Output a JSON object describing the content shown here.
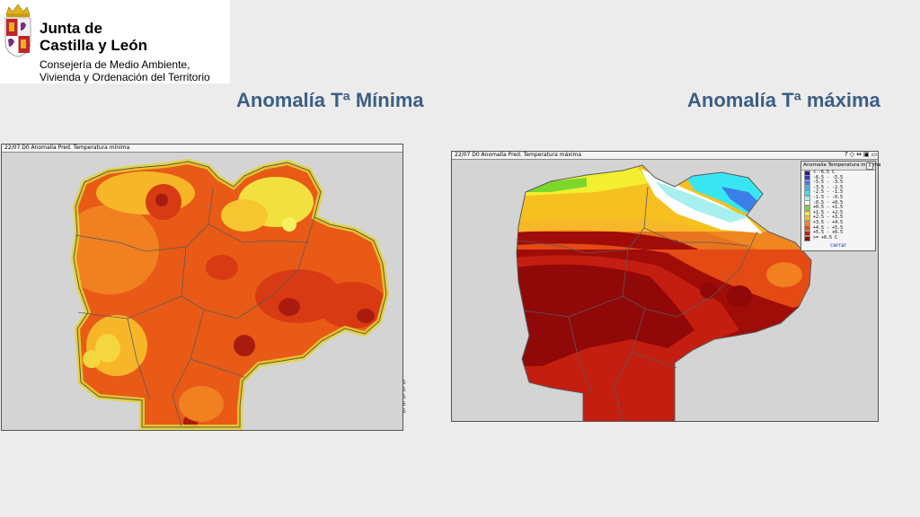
{
  "logo": {
    "org_line1": "Junta de",
    "org_line2": "Castilla y León",
    "dept_line1": "Consejería de Medio Ambiente,",
    "dept_line2": "Vivienda y Ordenación del Territorio"
  },
  "titles": {
    "min": "Anomalía Tª Mínima",
    "max": "Anomalía Tª máxima"
  },
  "panels": {
    "min_header": "22/07 D0 Anomalía Pred. Temperatura mínima",
    "max_header": "22/07 D0 Anomalía Pred. Temperatura máxima"
  },
  "toolbar": [
    "?",
    "◇",
    "⇔",
    "▣",
    "▭"
  ],
  "side_scale": [
    "5",
    "5",
    "5",
    "5",
    "5"
  ],
  "legend": {
    "title": "Anomalía Temperatura máxima",
    "close_label": "X",
    "cerrar_label": "cerrar",
    "rows": [
      {
        "label": "< -6.5 C",
        "color": "#2a1c8c"
      },
      {
        "label": "-6.5 - -5.5",
        "color": "#3636d8"
      },
      {
        "label": "-5.5 - -3.5",
        "color": "#3a7ee8"
      },
      {
        "label": "-3.5 - -2.5",
        "color": "#2cb6f0"
      },
      {
        "label": "-2.5 - -1.5",
        "color": "#38e6f2"
      },
      {
        "label": "-1.5 - -0.5",
        "color": "#a8f0f0"
      },
      {
        "label": "-0.5 - +0.5",
        "color": "#ffffff"
      },
      {
        "label": "+0.5 - +1.5",
        "color": "#7ad82a"
      },
      {
        "label": "+1.5 - +2.5",
        "color": "#f2ee30"
      },
      {
        "label": "+2.5 - +3.5",
        "color": "#f6c020"
      },
      {
        "label": "+3.5 - +4.5",
        "color": "#f48418"
      },
      {
        "label": "+4.5 - +5.5",
        "color": "#e84a14"
      },
      {
        "label": "+5.5 - +6.5",
        "color": "#c41e10"
      },
      {
        "label": ">= +6.5 C",
        "color": "#900808"
      }
    ]
  },
  "colors": {
    "title": "#3c5e84",
    "map_bg": "#d4d4d4",
    "border_line": "#5a5a5a"
  }
}
